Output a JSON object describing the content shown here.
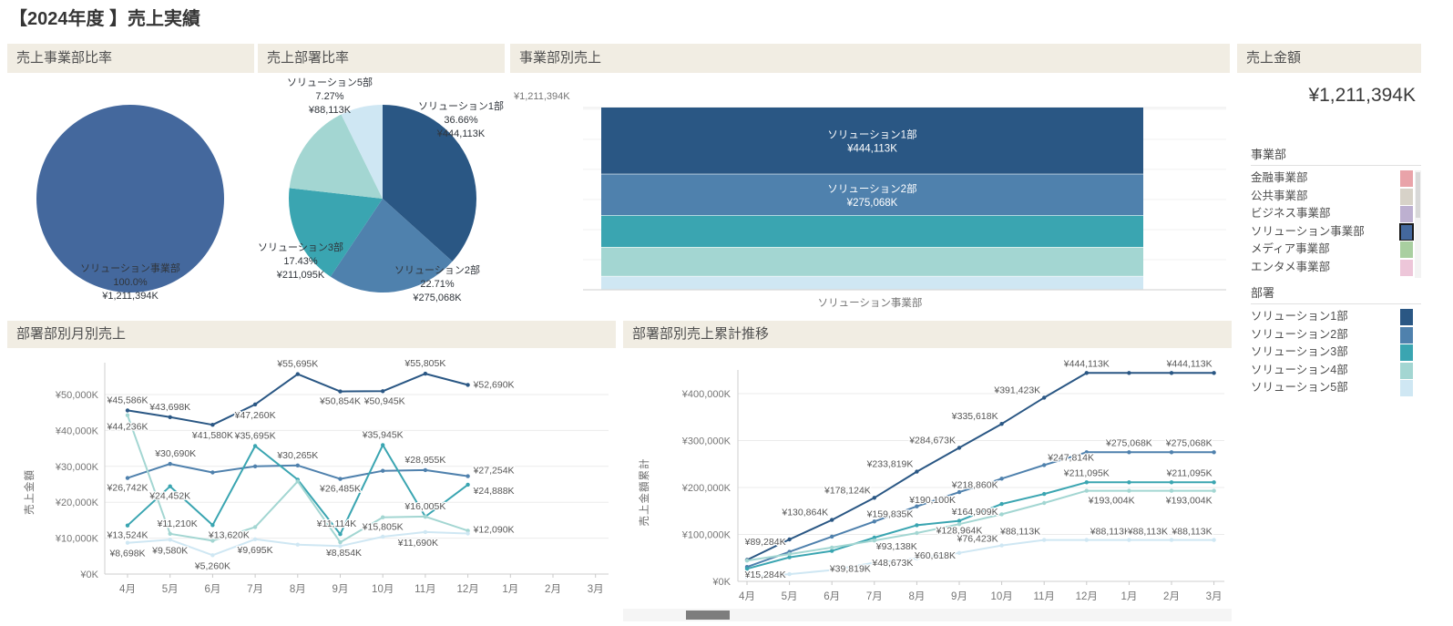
{
  "page": {
    "title": "【2024年度 】売上実績"
  },
  "amount": {
    "title": "売上金額",
    "value": "¥1,211,394K"
  },
  "division_filter": {
    "label": "事業部",
    "items": [
      {
        "name": "金融事業部",
        "color": "#e9a3a9",
        "selected": false
      },
      {
        "name": "公共事業部",
        "color": "#d7d2c8",
        "selected": false
      },
      {
        "name": "ビジネス事業部",
        "color": "#bdb0d0",
        "selected": false
      },
      {
        "name": "ソリューション事業部",
        "color": "#44689d",
        "selected": true
      },
      {
        "name": "メディア事業部",
        "color": "#a9cfa0",
        "selected": false
      },
      {
        "name": "エンタメ事業部",
        "color": "#edc6d9",
        "selected": false
      }
    ]
  },
  "dept_legend": {
    "label": "部署",
    "items": [
      {
        "name": "ソリューション1部",
        "color": "#2a5784"
      },
      {
        "name": "ソリューション2部",
        "color": "#4f81ad"
      },
      {
        "name": "ソリューション3部",
        "color": "#3aa5b1"
      },
      {
        "name": "ソリューション4部",
        "color": "#a3d6d2"
      },
      {
        "name": "ソリューション5部",
        "color": "#cfe7f3"
      }
    ]
  },
  "chart_data": [
    {
      "type": "pie",
      "title": "売上事業部比率",
      "slices": [
        {
          "label": "ソリューション事業部",
          "pct": 100.0,
          "pct_label": "100.0%",
          "value": 1211394,
          "value_label": "¥1,211,394K",
          "color": "#44689d"
        }
      ]
    },
    {
      "type": "pie",
      "title": "売上部署比率",
      "slices": [
        {
          "label": "ソリューション1部",
          "pct": 36.66,
          "pct_label": "36.66%",
          "value": 444113,
          "value_label": "¥444,113K",
          "color": "#2a5784"
        },
        {
          "label": "ソリューション2部",
          "pct": 22.71,
          "pct_label": "22.71%",
          "value": 275068,
          "value_label": "¥275,068K",
          "color": "#4f81ad"
        },
        {
          "label": "ソリューション3部",
          "pct": 17.43,
          "pct_label": "17.43%",
          "value": 211095,
          "value_label": "¥211,095K",
          "color": "#3aa5b1"
        },
        {
          "label": "ソリューション4部",
          "pct": 15.93,
          "value": 193004,
          "color": "#a3d6d2"
        },
        {
          "label": "ソリューション5部",
          "pct": 7.27,
          "pct_label": "7.27%",
          "value": 88113,
          "value_label": "¥88,113K",
          "color": "#cfe7f3"
        }
      ]
    },
    {
      "type": "bar",
      "stacked": true,
      "title": "事業部別売上",
      "category": "ソリューション事業部",
      "total": 1211394,
      "ymax_label": "¥1,211,394K",
      "segments": [
        {
          "name": "ソリューション1部",
          "value": 444113,
          "label": "¥444,113K",
          "show_label": true,
          "color": "#2a5784"
        },
        {
          "name": "ソリューション2部",
          "value": 275068,
          "label": "¥275,068K",
          "show_label": true,
          "color": "#4f81ad"
        },
        {
          "name": "ソリューション3部",
          "value": 211095,
          "show_label": false,
          "color": "#3aa5b1"
        },
        {
          "name": "ソリューション4部",
          "value": 193004,
          "show_label": false,
          "color": "#a3d6d2"
        },
        {
          "name": "ソリューション5部",
          "value": 88113,
          "show_label": false,
          "color": "#cfe7f3"
        }
      ]
    },
    {
      "type": "line",
      "title": "部署部別月別売上",
      "ylabel": "売上金額",
      "months": [
        "4月",
        "5月",
        "6月",
        "7月",
        "8月",
        "9月",
        "10月",
        "11月",
        "12月",
        "1月",
        "2月",
        "3月"
      ],
      "yticks": [
        {
          "v": 0,
          "t": "¥0K"
        },
        {
          "v": 10000,
          "t": "¥10,000K"
        },
        {
          "v": 20000,
          "t": "¥20,000K"
        },
        {
          "v": 30000,
          "t": "¥30,000K"
        },
        {
          "v": 40000,
          "t": "¥40,000K"
        },
        {
          "v": 50000,
          "t": "¥50,000K"
        }
      ],
      "series": [
        {
          "name": "ソリューション1部",
          "color": "#2a5784",
          "values": [
            45586,
            43698,
            41580,
            47260,
            55695,
            50854,
            50945,
            55805,
            52690,
            null,
            null,
            null
          ],
          "labels": [
            {
              "m": 0,
              "t": "¥45,586K",
              "an": "m",
              "dx": 0,
              "dy": -8
            },
            {
              "m": 1,
              "t": "¥43,698K",
              "an": "m",
              "dx": 0,
              "dy": -8
            },
            {
              "m": 2,
              "t": "¥41,580K",
              "an": "m",
              "dx": 0,
              "dy": 15
            },
            {
              "m": 3,
              "t": "¥47,260K",
              "an": "m",
              "dx": 0,
              "dy": 15
            },
            {
              "m": 4,
              "t": "¥55,695K",
              "an": "m",
              "dx": 0,
              "dy": -8
            },
            {
              "m": 5,
              "t": "¥50,854K",
              "an": "m",
              "dx": 0,
              "dy": 14
            },
            {
              "m": 6,
              "t": "¥50,945K",
              "an": "m",
              "dx": 2,
              "dy": 14
            },
            {
              "m": 7,
              "t": "¥55,805K",
              "an": "m",
              "dx": 0,
              "dy": -8
            },
            {
              "m": 8,
              "t": "¥52,690K",
              "an": "s",
              "dx": 6,
              "dy": 3
            }
          ]
        },
        {
          "name": "ソリューション2部",
          "color": "#4f81ad",
          "values": [
            26742,
            30690,
            28300,
            30000,
            30265,
            26485,
            28760,
            28955,
            27254,
            null,
            null,
            null
          ],
          "labels": [
            {
              "m": 0,
              "t": "¥26,742K",
              "an": "m",
              "dx": 0,
              "dy": 14
            },
            {
              "m": 1,
              "t": "¥30,690K",
              "an": "m",
              "dx": 6,
              "dy": -8
            },
            {
              "m": 4,
              "t": "¥30,265K",
              "an": "m",
              "dx": 0,
              "dy": -8
            },
            {
              "m": 5,
              "t": "¥26,485K",
              "an": "m",
              "dx": 0,
              "dy": 14
            },
            {
              "m": 7,
              "t": "¥28,955K",
              "an": "m",
              "dx": 0,
              "dy": -8
            },
            {
              "m": 8,
              "t": "¥27,254K",
              "an": "s",
              "dx": 6,
              "dy": -3
            }
          ]
        },
        {
          "name": "ソリューション3部",
          "color": "#3aa5b1",
          "values": [
            13524,
            24452,
            13620,
            35695,
            26300,
            11114,
            35945,
            16000,
            24888,
            null,
            null,
            null
          ],
          "labels": [
            {
              "m": 0,
              "t": "¥13,524K",
              "an": "m",
              "dx": 0,
              "dy": 14
            },
            {
              "m": 1,
              "t": "¥24,452K",
              "an": "m",
              "dx": 0,
              "dy": 14
            },
            {
              "m": 2,
              "t": "¥13,620K",
              "an": "m",
              "dx": 18,
              "dy": 14
            },
            {
              "m": 3,
              "t": "¥35,695K",
              "an": "m",
              "dx": 0,
              "dy": -8
            },
            {
              "m": 5,
              "t": "¥11,114K",
              "an": "m",
              "dx": -4,
              "dy": -8
            },
            {
              "m": 6,
              "t": "¥35,945K",
              "an": "m",
              "dx": 0,
              "dy": -8
            },
            {
              "m": 8,
              "t": "¥24,888K",
              "an": "s",
              "dx": 6,
              "dy": 10
            }
          ]
        },
        {
          "name": "ソリューション4部",
          "color": "#a3d6d2",
          "values": [
            44236,
            11210,
            9300,
            13100,
            25800,
            8854,
            15805,
            16005,
            12090,
            null,
            null,
            null
          ],
          "labels": [
            {
              "m": 0,
              "t": "¥44,236K",
              "an": "m",
              "dx": 0,
              "dy": 16
            },
            {
              "m": 1,
              "t": "¥11,210K",
              "an": "m",
              "dx": 8,
              "dy": -8
            },
            {
              "m": 5,
              "t": "¥8,854K",
              "an": "m",
              "dx": 4,
              "dy": 15
            },
            {
              "m": 6,
              "t": "¥15,805K",
              "an": "m",
              "dx": 0,
              "dy": 14
            },
            {
              "m": 7,
              "t": "¥16,005K",
              "an": "m",
              "dx": 0,
              "dy": -8
            },
            {
              "m": 8,
              "t": "¥12,090K",
              "an": "s",
              "dx": 6,
              "dy": 2
            }
          ]
        },
        {
          "name": "ソリューション5部",
          "color": "#cfe7f3",
          "values": [
            8698,
            9580,
            5260,
            9695,
            8200,
            7800,
            10400,
            11690,
            11300,
            null,
            null,
            null
          ],
          "labels": [
            {
              "m": 0,
              "t": "¥8,698K",
              "an": "m",
              "dx": 0,
              "dy": 15
            },
            {
              "m": 1,
              "t": "¥9,580K",
              "an": "m",
              "dx": 0,
              "dy": 15
            },
            {
              "m": 2,
              "t": "¥5,260K",
              "an": "m",
              "dx": 0,
              "dy": 15
            },
            {
              "m": 3,
              "t": "¥9,695K",
              "an": "m",
              "dx": 0,
              "dy": 15
            },
            {
              "m": 7,
              "t": "¥11,690K",
              "an": "m",
              "dx": -8,
              "dy": 15
            }
          ]
        }
      ]
    },
    {
      "type": "line",
      "title": "部署部別売上累計推移",
      "ylabel": "売上金額累計",
      "months": [
        "4月",
        "5月",
        "6月",
        "7月",
        "8月",
        "9月",
        "10月",
        "11月",
        "12月",
        "1月",
        "2月",
        "3月"
      ],
      "yticks": [
        {
          "v": 0,
          "t": "¥0K"
        },
        {
          "v": 100000,
          "t": "¥100,000K"
        },
        {
          "v": 200000,
          "t": "¥200,000K"
        },
        {
          "v": 300000,
          "t": "¥300,000K"
        },
        {
          "v": 400000,
          "t": "¥400,000K"
        }
      ],
      "series": [
        {
          "name": "ソリューション1部",
          "color": "#2a5784",
          "values": [
            45586,
            89284,
            130864,
            178124,
            233819,
            284673,
            335618,
            391423,
            444113,
            444113,
            444113,
            444113
          ],
          "labels": [
            {
              "m": 1,
              "t": "¥89,284K",
              "an": "e",
              "dx": -4,
              "dy": 6
            },
            {
              "m": 2,
              "t": "¥130,864K",
              "an": "e",
              "dx": -4,
              "dy": -5
            },
            {
              "m": 3,
              "t": "¥178,124K",
              "an": "e",
              "dx": -4,
              "dy": -5
            },
            {
              "m": 4,
              "t": "¥233,819K",
              "an": "e",
              "dx": -4,
              "dy": -5
            },
            {
              "m": 5,
              "t": "¥284,673K",
              "an": "e",
              "dx": -4,
              "dy": -5
            },
            {
              "m": 6,
              "t": "¥335,618K",
              "an": "e",
              "dx": -4,
              "dy": -5
            },
            {
              "m": 7,
              "t": "¥391,423K",
              "an": "e",
              "dx": -4,
              "dy": -5
            },
            {
              "m": 8,
              "t": "¥444,113K",
              "an": "m",
              "dx": 0,
              "dy": -7
            },
            {
              "m": 11,
              "t": "¥444,113K",
              "an": "e",
              "dx": -2,
              "dy": -7
            }
          ]
        },
        {
          "name": "ソリューション2部",
          "color": "#4f81ad",
          "values": [
            30690,
            63000,
            95300,
            127600,
            159835,
            190100,
            218860,
            247814,
            275068,
            275068,
            275068,
            275068
          ],
          "labels": [
            {
              "m": 4,
              "t": "¥159,835K",
              "an": "e",
              "dx": -4,
              "dy": 12
            },
            {
              "m": 5,
              "t": "¥190,100K",
              "an": "e",
              "dx": -4,
              "dy": 12
            },
            {
              "m": 6,
              "t": "¥218,860K",
              "an": "e",
              "dx": -4,
              "dy": 10
            },
            {
              "m": 7,
              "t": "¥247,814K",
              "an": "s",
              "dx": 4,
              "dy": -5
            },
            {
              "m": 9,
              "t": "¥275,068K",
              "an": "m",
              "dx": 0,
              "dy": -7
            },
            {
              "m": 11,
              "t": "¥275,068K",
              "an": "e",
              "dx": -2,
              "dy": -7
            }
          ]
        },
        {
          "name": "ソリューション3部",
          "color": "#3aa5b1",
          "values": [
            26742,
            51194,
            64814,
            93138,
            119623,
            128964,
            164909,
            186207,
            211095,
            211095,
            211095,
            211095
          ],
          "labels": [
            {
              "m": 3,
              "t": "¥93,138K",
              "an": "s",
              "dx": 2,
              "dy": 13
            },
            {
              "m": 5,
              "t": "¥128,964K",
              "an": "m",
              "dx": 0,
              "dy": 14
            },
            {
              "m": 6,
              "t": "¥164,909K",
              "an": "e",
              "dx": -4,
              "dy": 12
            },
            {
              "m": 8,
              "t": "¥211,095K",
              "an": "m",
              "dx": 0,
              "dy": -7
            },
            {
              "m": 11,
              "t": "¥211,095K",
              "an": "e",
              "dx": -2,
              "dy": -7
            }
          ]
        },
        {
          "name": "ソリューション4部",
          "color": "#a3d6d2",
          "values": [
            44236,
            58000,
            72000,
            87000,
            103000,
            122000,
            143000,
            167000,
            193004,
            193004,
            193004,
            193004
          ],
          "labels": [
            {
              "m": 8,
              "t": "¥193,004K",
              "an": "s",
              "dx": 2,
              "dy": 14
            },
            {
              "m": 11,
              "t": "¥193,004K",
              "an": "e",
              "dx": -2,
              "dy": 14
            }
          ]
        },
        {
          "name": "ソリューション5部",
          "color": "#cfe7f3",
          "values": [
            8698,
            15284,
            24000,
            39819,
            48673,
            60618,
            76423,
            88113,
            88113,
            88113,
            88113,
            88113
          ],
          "labels": [
            {
              "m": 1,
              "t": "¥15,284K",
              "an": "e",
              "dx": -4,
              "dy": 4
            },
            {
              "m": 3,
              "t": "¥39,819K",
              "an": "e",
              "dx": -4,
              "dy": 10
            },
            {
              "m": 4,
              "t": "¥48,673K",
              "an": "e",
              "dx": -4,
              "dy": 8
            },
            {
              "m": 5,
              "t": "¥60,618K",
              "an": "e",
              "dx": -4,
              "dy": 6
            },
            {
              "m": 6,
              "t": "¥76,423K",
              "an": "e",
              "dx": -4,
              "dy": -4
            },
            {
              "m": 7,
              "t": "¥88,113K",
              "an": "e",
              "dx": -4,
              "dy": -6
            },
            {
              "m": 8,
              "t": "¥88,113K",
              "an": "s",
              "dx": 4,
              "dy": -6
            },
            {
              "m": 10,
              "t": "¥88,113K",
              "an": "e",
              "dx": -4,
              "dy": -6
            },
            {
              "m": 11,
              "t": "¥88,113K",
              "an": "e",
              "dx": -2,
              "dy": -6
            }
          ]
        }
      ]
    }
  ]
}
